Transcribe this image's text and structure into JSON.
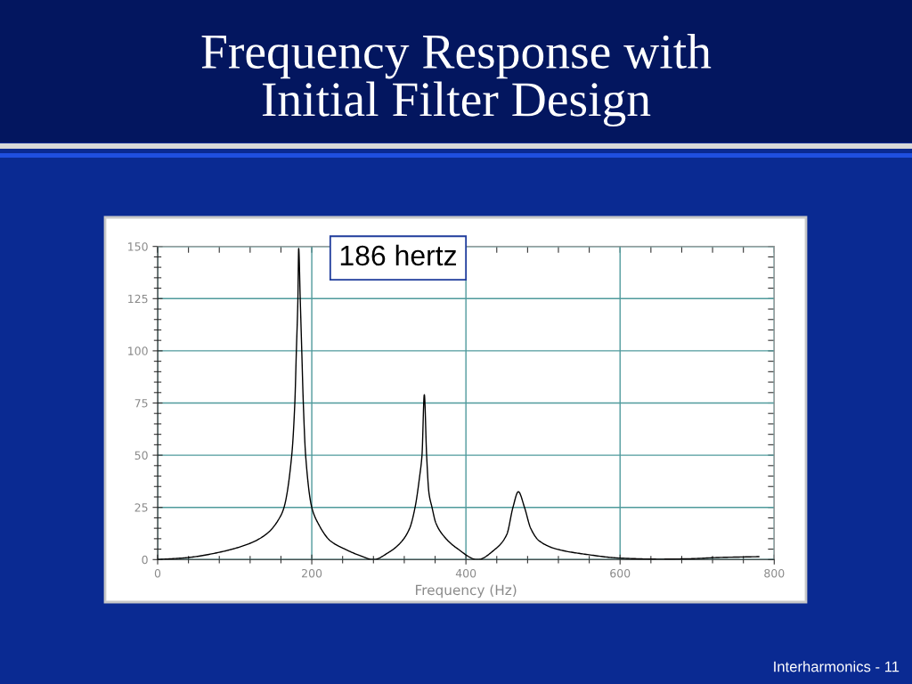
{
  "chart_data": {
    "type": "line",
    "title": "Frequency Response with\nInitial Filter Design",
    "xlabel": "Frequency (Hz)",
    "x": [
      0,
      40,
      80,
      120,
      143,
      159,
      164,
      174,
      178,
      180,
      182,
      183,
      185,
      187,
      189,
      192,
      200,
      208,
      224,
      243,
      262,
      280,
      300,
      315,
      327,
      334,
      340,
      343,
      346,
      349,
      352,
      356,
      361,
      373,
      388,
      415,
      438,
      453,
      461,
      468,
      476,
      484,
      495,
      518,
      556,
      600,
      652,
      690,
      728,
      780
    ],
    "series": [
      {
        "color": "#000000",
        "values": [
          0,
          1,
          3.5,
          7.8,
          12.8,
          20.5,
          25,
          50,
          75,
          100,
          125,
          149,
          125,
          100,
          75,
          50,
          25,
          17.5,
          9,
          5,
          2,
          0,
          3.5,
          8,
          15,
          25,
          40,
          50,
          79,
          50,
          32,
          25,
          17.5,
          10.5,
          5.5,
          0,
          5,
          12,
          25,
          32.5,
          25,
          15,
          9,
          5,
          2.5,
          0.7,
          0.2,
          0.4,
          1,
          1.4
        ]
      }
    ],
    "xlim": [
      0,
      800
    ],
    "ylim": [
      0,
      150
    ],
    "xticks": [
      0,
      {
        "value": 40,
        "label": null
      },
      {
        "value": 80,
        "label": null
      },
      {
        "value": 120,
        "label": null
      },
      {
        "value": 160,
        "label": null
      },
      200,
      {
        "value": 240,
        "label": null
      },
      {
        "value": 280,
        "label": null
      },
      {
        "value": 320,
        "label": null
      },
      {
        "value": 360,
        "label": null
      },
      400,
      {
        "value": 440,
        "label": null
      },
      {
        "value": 480,
        "label": null
      },
      {
        "value": 520,
        "label": null
      },
      {
        "value": 560,
        "label": null
      },
      600,
      {
        "value": 640,
        "label": null
      },
      {
        "value": 680,
        "label": null
      },
      {
        "value": 720,
        "label": null
      },
      {
        "value": 760,
        "label": null
      },
      800
    ],
    "yticks": [
      0,
      {
        "value": 5,
        "label": null
      },
      {
        "value": 10,
        "label": null
      },
      {
        "value": 15,
        "label": null
      },
      {
        "value": 20,
        "label": null
      },
      25,
      {
        "value": 30,
        "label": null
      },
      {
        "value": 35,
        "label": null
      },
      {
        "value": 40,
        "label": null
      },
      {
        "value": 45,
        "label": null
      },
      50,
      {
        "value": 55,
        "label": null
      },
      {
        "value": 60,
        "label": null
      },
      {
        "value": 65,
        "label": null
      },
      {
        "value": 70,
        "label": null
      },
      75,
      {
        "value": 80,
        "label": null
      },
      {
        "value": 85,
        "label": null
      },
      {
        "value": 90,
        "label": null
      },
      {
        "value": 95,
        "label": null
      },
      100,
      {
        "value": 105,
        "label": null
      },
      {
        "value": 110,
        "label": null
      },
      {
        "value": 115,
        "label": null
      },
      {
        "value": 120,
        "label": null
      },
      125,
      {
        "value": 130,
        "label": null
      },
      {
        "value": 135,
        "label": null
      },
      {
        "value": 140,
        "label": null
      },
      {
        "value": 145,
        "label": null
      },
      150
    ],
    "grid": true,
    "annotations": [
      "186 hertz",
      "Interharmonics - 11"
    ]
  }
}
